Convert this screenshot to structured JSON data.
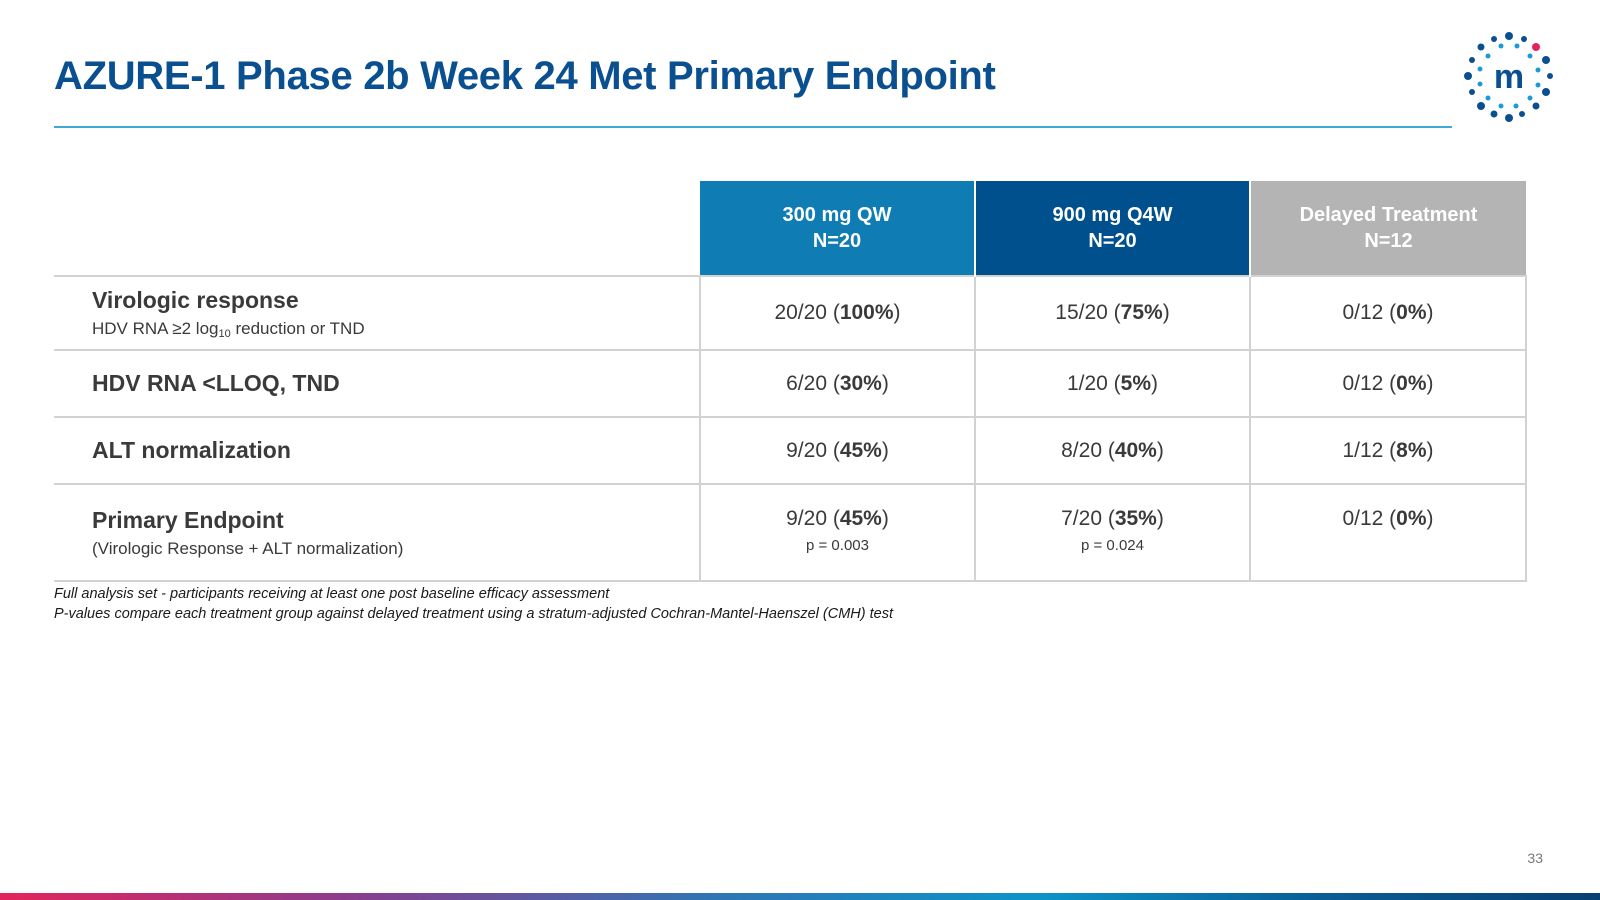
{
  "title": "AZURE-1 Phase 2b Week 24 Met Primary Endpoint",
  "logo": {
    "icon": "company-logo-m-icon",
    "letter": "m",
    "colors": {
      "dots": "#0a4f8f",
      "dots_light": "#1b9ad6",
      "accent": "#e3245c"
    }
  },
  "table": {
    "columns": [
      {
        "line1": "300 mg QW",
        "line2": "N=20",
        "color": "#0f7db4"
      },
      {
        "line1": "900 mg Q4W",
        "line2": "N=20",
        "color": "#00508e"
      },
      {
        "line1": "Delayed Treatment",
        "line2": "N=12",
        "color": "#b4b4b4"
      }
    ],
    "rows": [
      {
        "label": "Virologic response",
        "sublabel_pre": "HDV RNA ≥2 log",
        "sublabel_sub": "10",
        "sublabel_post": " reduction or TND",
        "cells": [
          {
            "frac": "20/20",
            "pct": "100%"
          },
          {
            "frac": "15/20",
            "pct": "75%"
          },
          {
            "frac": "0/12",
            "pct": "0%"
          }
        ]
      },
      {
        "label": "HDV RNA <LLOQ, TND",
        "cells": [
          {
            "frac": "6/20",
            "pct": "30%"
          },
          {
            "frac": "1/20",
            "pct": "5%"
          },
          {
            "frac": "0/12",
            "pct": "0%"
          }
        ]
      },
      {
        "label": "ALT normalization",
        "cells": [
          {
            "frac": "9/20",
            "pct": "45%"
          },
          {
            "frac": "8/20",
            "pct": "40%"
          },
          {
            "frac": "1/12",
            "pct": "8%"
          }
        ]
      },
      {
        "label": "Primary Endpoint",
        "sublabel": "(Virologic Response + ALT normalization)",
        "cells": [
          {
            "frac": "9/20",
            "pct": "45%",
            "p": "p = 0.003"
          },
          {
            "frac": "7/20",
            "pct": "35%",
            "p": "p = 0.024"
          },
          {
            "frac": "0/12",
            "pct": "0%"
          }
        ]
      }
    ]
  },
  "footnotes": [
    "Full analysis set - participants receiving at least one post baseline efficacy assessment",
    "P-values compare each treatment group against delayed treatment using a stratum-adjusted Cochran-Mantel-Haenszel (CMH) test"
  ],
  "page_number": "33"
}
